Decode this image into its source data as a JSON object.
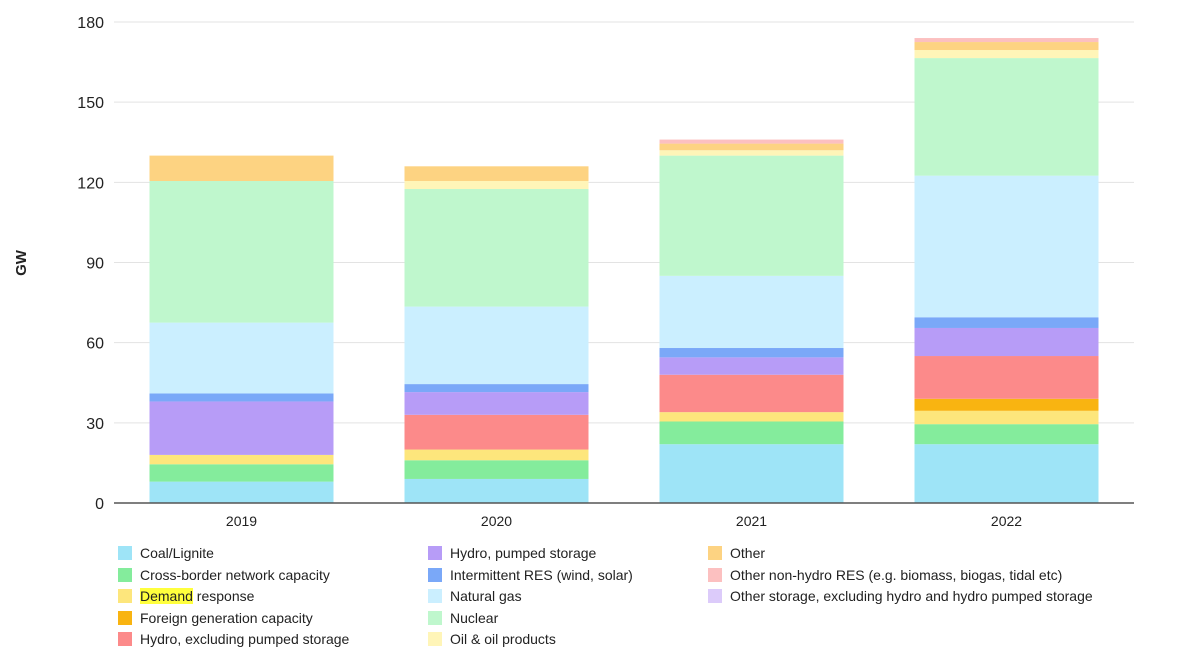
{
  "chart_data": {
    "type": "bar",
    "stacked": true,
    "ylabel": "GW",
    "ylim": [
      0,
      180
    ],
    "yticks": [
      0,
      30,
      60,
      90,
      120,
      150,
      180
    ],
    "grid": true,
    "legend_position": "bottom",
    "categories": [
      "2019",
      "2020",
      "2021",
      "2022"
    ],
    "series": [
      {
        "name": "Coal/Lignite",
        "color": "#9ee4f7",
        "values": [
          8,
          9,
          22,
          22
        ]
      },
      {
        "name": "Cross-border network capacity",
        "color": "#84ec9c",
        "values": [
          6.5,
          7,
          8.5,
          7.5
        ]
      },
      {
        "name": "Demand response",
        "color": "#fde67c",
        "values": [
          3.5,
          4,
          3.5,
          5
        ]
      },
      {
        "name": "Foreign generation capacity",
        "color": "#f9b411",
        "values": [
          0,
          0,
          0,
          4.5
        ]
      },
      {
        "name": "Hydro, excluding pumped storage",
        "color": "#fc8a8a",
        "values": [
          0,
          13,
          14,
          16
        ]
      },
      {
        "name": "Hydro, pumped storage",
        "color": "#b79cf7",
        "values": [
          20,
          8.5,
          6.5,
          10.5
        ]
      },
      {
        "name": "Intermittent RES (wind, solar)",
        "color": "#7aa8f8",
        "values": [
          3,
          3,
          3.5,
          4
        ]
      },
      {
        "name": "Natural gas",
        "color": "#cbefff",
        "values": [
          26.5,
          29,
          27,
          53
        ]
      },
      {
        "name": "Nuclear",
        "color": "#bff7cd",
        "values": [
          53,
          44,
          45,
          44
        ]
      },
      {
        "name": "Oil & oil products",
        "color": "#fff5b8",
        "values": [
          0,
          3,
          2,
          3
        ]
      },
      {
        "name": "Other",
        "color": "#fdd382",
        "values": [
          9.5,
          5.5,
          2.5,
          3
        ]
      },
      {
        "name": "Other non-hydro RES (e.g. biomass, biogas, tidal etc)",
        "color": "#fcc0c0",
        "values": [
          0,
          0,
          1.5,
          1.5
        ]
      },
      {
        "name": "Other storage, excluding hydro and hydro pumped storage",
        "color": "#dccbfa",
        "values": [
          0,
          0,
          0,
          0
        ]
      }
    ]
  },
  "legend": {
    "items": [
      {
        "series": 0,
        "pre": "",
        "hl": "",
        "post": "Coal/Lignite"
      },
      {
        "series": 1,
        "pre": "",
        "hl": "",
        "post": "Cross-border network capacity"
      },
      {
        "series": 2,
        "pre": "",
        "hl": "Demand",
        "post": " response"
      },
      {
        "series": 3,
        "pre": "",
        "hl": "",
        "post": "Foreign generation capacity"
      },
      {
        "series": 4,
        "pre": "",
        "hl": "",
        "post": "Hydro, excluding pumped storage"
      },
      {
        "series": 5,
        "pre": "",
        "hl": "",
        "post": "Hydro, pumped storage"
      },
      {
        "series": 6,
        "pre": "",
        "hl": "",
        "post": "Intermittent RES (wind, solar)"
      },
      {
        "series": 7,
        "pre": "",
        "hl": "",
        "post": "Natural gas"
      },
      {
        "series": 8,
        "pre": "",
        "hl": "",
        "post": "Nuclear"
      },
      {
        "series": 9,
        "pre": "",
        "hl": "",
        "post": "Oil & oil products"
      },
      {
        "series": 10,
        "pre": "",
        "hl": "",
        "post": "Other"
      },
      {
        "series": 11,
        "pre": "",
        "hl": "",
        "post": "Other non-hydro RES (e.g. biomass, biogas, tidal etc)"
      },
      {
        "series": 12,
        "pre": "",
        "hl": "",
        "post": "Other storage, excluding hydro and hydro pumped storage"
      }
    ]
  }
}
